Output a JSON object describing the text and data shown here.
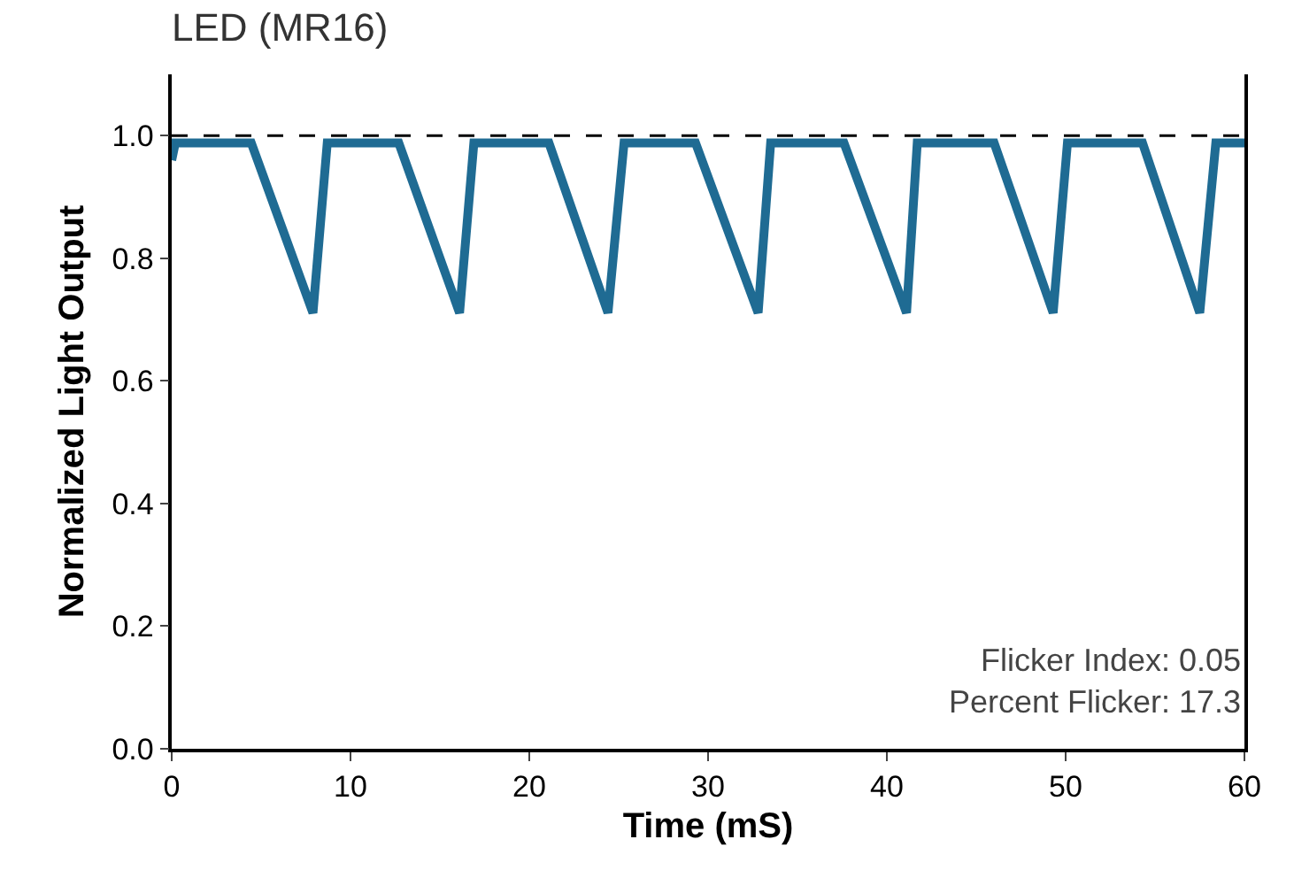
{
  "chart_data": {
    "type": "line",
    "title": "LED (MR16)",
    "xlabel": "Time (mS)",
    "ylabel": "Normalized Light Output",
    "x": [
      0,
      0.2,
      4.45,
      7.9,
      8.7,
      12.7,
      16.1,
      16.9,
      21.1,
      24.4,
      25.3,
      29.3,
      32.8,
      33.5,
      37.6,
      41.1,
      41.7,
      46.0,
      49.3,
      50.1,
      54.3,
      57.5,
      58.4,
      60
    ],
    "series": [
      {
        "color": "#1f6b93",
        "values": [
          0.96,
          0.988,
          0.988,
          0.711,
          0.988,
          0.988,
          0.711,
          0.988,
          0.988,
          0.711,
          0.988,
          0.988,
          0.711,
          0.988,
          0.988,
          0.711,
          0.988,
          0.988,
          0.711,
          0.988,
          0.988,
          0.711,
          0.988,
          0.988
        ]
      }
    ],
    "xlim": [
      0,
      60
    ],
    "xticks": [
      0,
      10,
      20,
      30,
      40,
      50,
      60
    ],
    "ylim": [
      0,
      1.1
    ],
    "yticks": [
      {
        "value": 0,
        "label": "0.0"
      },
      {
        "value": 0.2,
        "label": "0.2"
      },
      {
        "value": 0.4,
        "label": "0.4"
      },
      {
        "value": 0.6,
        "label": "0.6"
      },
      {
        "value": 0.8,
        "label": "0.8"
      },
      {
        "value": 1,
        "label": "1.0"
      }
    ],
    "ref_lines": [
      {
        "axis": "y",
        "value": 1,
        "color": "#000000",
        "line_style": "dashed"
      }
    ],
    "annotations": [
      "Flicker Index: 0.05",
      "Percent Flicker: 17.3"
    ],
    "grid": false,
    "marker": "none",
    "line_style": "solid"
  }
}
